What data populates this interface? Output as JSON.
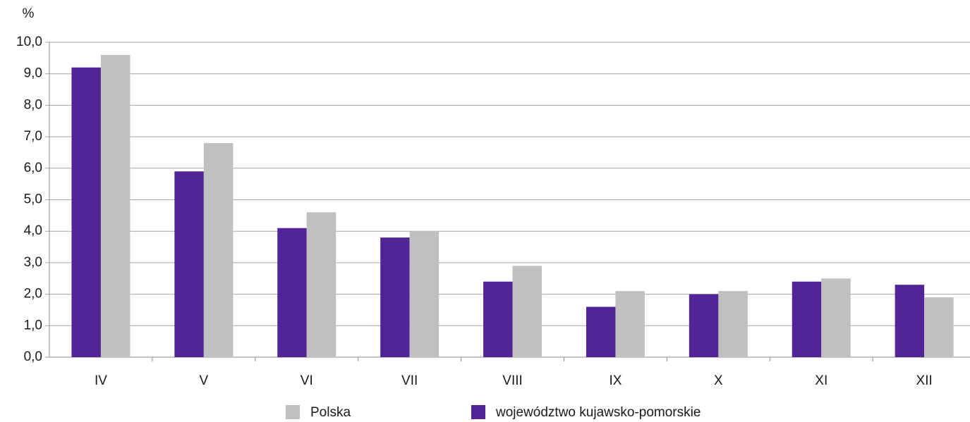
{
  "chart_data": {
    "type": "bar",
    "y_axis_label": "%",
    "categories": [
      "IV",
      "V",
      "VI",
      "VII",
      "VIII",
      "IX",
      "X",
      "XI",
      "XII"
    ],
    "series": [
      {
        "name": "województwo kujawsko-pomorskie",
        "color": "#512597",
        "values": [
          9.2,
          5.9,
          4.1,
          3.8,
          2.4,
          1.6,
          2.0,
          2.4,
          2.3
        ]
      },
      {
        "name": "Polska",
        "color": "#c0c0c0",
        "values": [
          9.6,
          6.8,
          4.6,
          4.0,
          2.9,
          2.1,
          2.1,
          2.5,
          1.9
        ]
      }
    ],
    "ylim": [
      0,
      10
    ],
    "yticks": [
      {
        "value": 0,
        "label": "0,0"
      },
      {
        "value": 1,
        "label": "1,0"
      },
      {
        "value": 2,
        "label": "2,0"
      },
      {
        "value": 3,
        "label": "3,0"
      },
      {
        "value": 4,
        "label": "4,0"
      },
      {
        "value": 5,
        "label": "5,0"
      },
      {
        "value": 6,
        "label": "6,0"
      },
      {
        "value": 7,
        "label": "7,0"
      },
      {
        "value": 8,
        "label": "8,0"
      },
      {
        "value": 9,
        "label": "9,0"
      },
      {
        "value": 10,
        "label": "10,0"
      }
    ],
    "grid": true
  }
}
